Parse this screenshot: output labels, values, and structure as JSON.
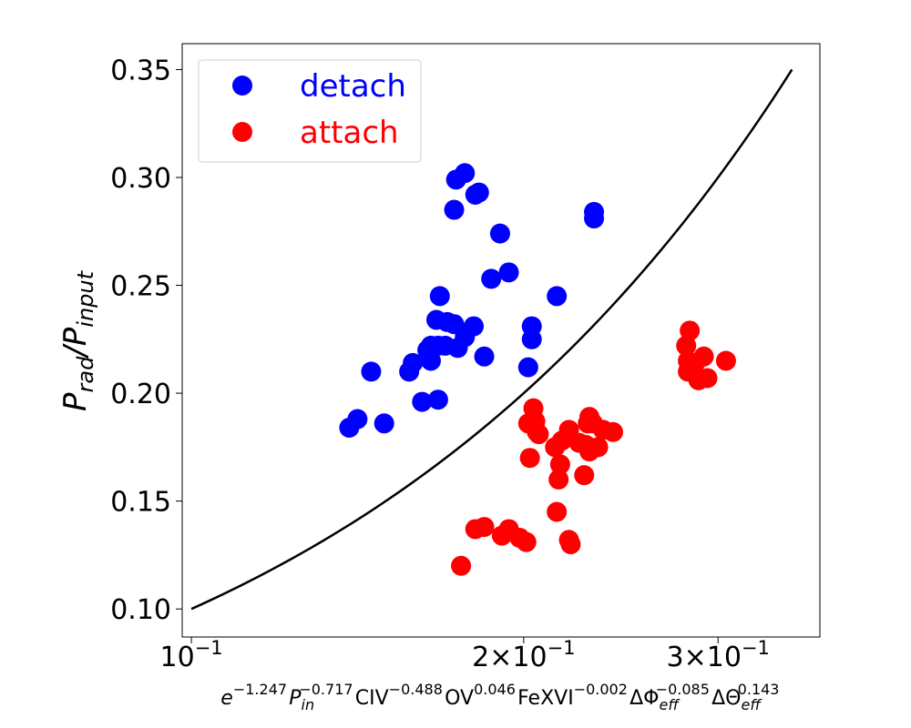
{
  "chart_data": {
    "type": "scatter",
    "x_scale": "log",
    "xlim": [
      0.0981,
      0.371
    ],
    "ylim": [
      0.087,
      0.362
    ],
    "x_ticks": [
      {
        "value": 0.1,
        "mantissa": "10",
        "exp": "−1"
      },
      {
        "value": 0.2,
        "mantissa": "2×10",
        "exp": "−1"
      },
      {
        "value": 0.3,
        "mantissa": "3×10",
        "exp": "−1"
      }
    ],
    "y_ticks": [
      {
        "value": 0.1,
        "label": "0.10"
      },
      {
        "value": 0.15,
        "label": "0.15"
      },
      {
        "value": 0.2,
        "label": "0.20"
      },
      {
        "value": 0.25,
        "label": "0.25"
      },
      {
        "value": 0.3,
        "label": "0.30"
      },
      {
        "value": 0.35,
        "label": "0.35"
      }
    ],
    "ylabel": {
      "main": "P",
      "sub1": "rad",
      "slash": "/P",
      "sub2": "input"
    },
    "xlabel": [
      {
        "t": "e",
        "sup": "−1.247"
      },
      {
        "t": "P",
        "sub": "in",
        "sup": "−0.717"
      },
      {
        "t": "CIV",
        "sup": "−0.488"
      },
      {
        "t": "OV",
        "sup": "0.046"
      },
      {
        "t": "FeXVI",
        "sup": "−0.002"
      },
      {
        "t": "ΔΦ",
        "sub": "eff",
        "sup": "−0.085"
      },
      {
        "t": "ΔΘ",
        "sub": "eff",
        "sup": "0.143"
      }
    ],
    "legend_position": "top-left",
    "fit_line": {
      "x": [
        0.1,
        0.35
      ],
      "y": [
        0.1,
        0.35
      ],
      "color": "#000000"
    },
    "series": [
      {
        "name": "detach",
        "color": "#0000ff",
        "points": [
          [
            0.139,
            0.184
          ],
          [
            0.1414,
            0.188
          ],
          [
            0.1455,
            0.21
          ],
          [
            0.1495,
            0.186
          ],
          [
            0.1575,
            0.21
          ],
          [
            0.1587,
            0.214
          ],
          [
            0.1618,
            0.196
          ],
          [
            0.1636,
            0.22
          ],
          [
            0.1648,
            0.215
          ],
          [
            0.1648,
            0.222
          ],
          [
            0.1667,
            0.234
          ],
          [
            0.1673,
            0.197
          ],
          [
            0.1673,
            0.222
          ],
          [
            0.1679,
            0.245
          ],
          [
            0.1698,
            0.222
          ],
          [
            0.1705,
            0.233
          ],
          [
            0.173,
            0.232
          ],
          [
            0.173,
            0.285
          ],
          [
            0.1737,
            0.299
          ],
          [
            0.1743,
            0.221
          ],
          [
            0.1769,
            0.302
          ],
          [
            0.1769,
            0.226
          ],
          [
            0.1802,
            0.231
          ],
          [
            0.1808,
            0.292
          ],
          [
            0.1822,
            0.293
          ],
          [
            0.1842,
            0.217
          ],
          [
            0.1869,
            0.253
          ],
          [
            0.1904,
            0.274
          ],
          [
            0.1939,
            0.256
          ],
          [
            0.2019,
            0.212
          ],
          [
            0.2034,
            0.231
          ],
          [
            0.2034,
            0.225
          ],
          [
            0.2143,
            0.245
          ],
          [
            0.2316,
            0.284
          ],
          [
            0.2316,
            0.281
          ]
        ]
      },
      {
        "name": "attach",
        "color": "#ff0000",
        "points": [
          [
            0.1755,
            0.12
          ],
          [
            0.1808,
            0.137
          ],
          [
            0.1842,
            0.138
          ],
          [
            0.1911,
            0.134
          ],
          [
            0.1939,
            0.137
          ],
          [
            0.1983,
            0.133
          ],
          [
            0.2011,
            0.131
          ],
          [
            0.2019,
            0.186
          ],
          [
            0.2026,
            0.17
          ],
          [
            0.2034,
            0.187
          ],
          [
            0.2041,
            0.193
          ],
          [
            0.2049,
            0.187
          ],
          [
            0.2056,
            0.182
          ],
          [
            0.2064,
            0.181
          ],
          [
            0.2135,
            0.175
          ],
          [
            0.2143,
            0.145
          ],
          [
            0.2151,
            0.16
          ],
          [
            0.2158,
            0.167
          ],
          [
            0.2166,
            0.178
          ],
          [
            0.2198,
            0.132
          ],
          [
            0.2198,
            0.183
          ],
          [
            0.2206,
            0.13
          ],
          [
            0.2245,
            0.177
          ],
          [
            0.2269,
            0.162
          ],
          [
            0.2277,
            0.176
          ],
          [
            0.2286,
            0.186
          ],
          [
            0.2294,
            0.173
          ],
          [
            0.2294,
            0.189
          ],
          [
            0.2311,
            0.186
          ],
          [
            0.2336,
            0.175
          ],
          [
            0.2361,
            0.183
          ],
          [
            0.241,
            0.182
          ],
          [
            0.2807,
            0.222
          ],
          [
            0.2817,
            0.21
          ],
          [
            0.2817,
            0.215
          ],
          [
            0.2828,
            0.229
          ],
          [
            0.2849,
            0.212
          ],
          [
            0.286,
            0.214
          ],
          [
            0.288,
            0.206
          ],
          [
            0.2912,
            0.217
          ],
          [
            0.2934,
            0.207
          ],
          [
            0.305,
            0.215
          ]
        ]
      }
    ]
  }
}
